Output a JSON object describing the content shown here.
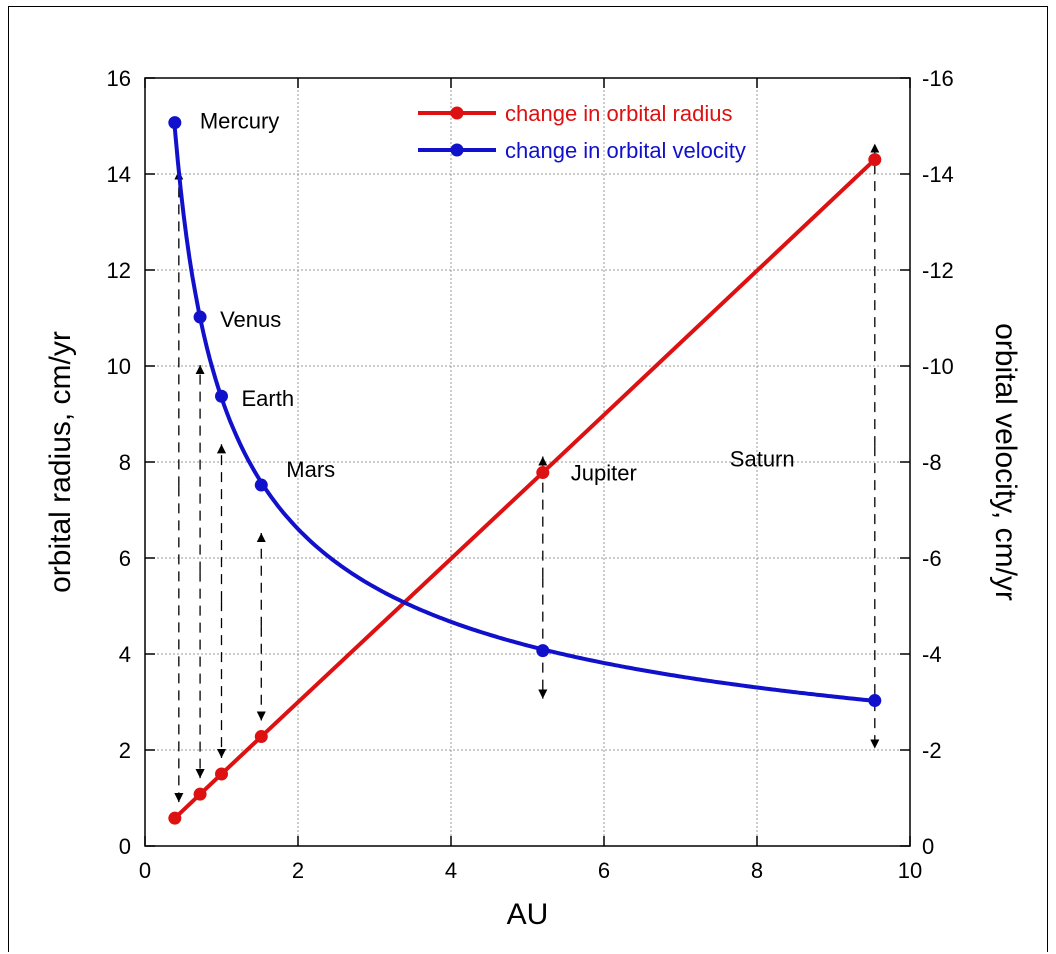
{
  "chart_data": {
    "type": "line",
    "xlabel": "AU",
    "ylabel_left": "orbital radius, cm/yr",
    "ylabel_right": "orbital velocity, cm/yr",
    "xlim": [
      0,
      10
    ],
    "ylim_left": [
      0,
      16
    ],
    "ylim_right": [
      0,
      -16
    ],
    "x_ticks": [
      "0",
      "2",
      "4",
      "6",
      "8",
      "10"
    ],
    "y_ticks_left": [
      "0",
      "2",
      "4",
      "6",
      "8",
      "10",
      "12",
      "14",
      "16"
    ],
    "y_ticks_right": [
      "0",
      "-2",
      "-4",
      "-6",
      "-8",
      "-10",
      "-12",
      "-14",
      "-16"
    ],
    "grid": true,
    "legend_position": "top-center",
    "planets": [
      {
        "name": "Mercury",
        "x": 0.39
      },
      {
        "name": "Venus",
        "x": 0.72
      },
      {
        "name": "Earth",
        "x": 1.0
      },
      {
        "name": "Mars",
        "x": 1.52
      },
      {
        "name": "Jupiter",
        "x": 5.2
      },
      {
        "name": "Saturn",
        "x": 9.54
      }
    ],
    "series": [
      {
        "name": "change in orbital radius",
        "color": "#dd1111",
        "axis": "left",
        "x": [
          0.39,
          0.72,
          1.0,
          1.52,
          5.2,
          9.54
        ],
        "values": [
          0.58,
          1.08,
          1.5,
          2.28,
          7.78,
          14.3
        ]
      },
      {
        "name": "change in orbital velocity",
        "color": "#1111cc",
        "axis": "right",
        "x": [
          0.39,
          0.72,
          1.0,
          1.52,
          5.2,
          9.54
        ],
        "values": [
          -15.07,
          -11.02,
          -9.37,
          -7.52,
          -4.07,
          -3.03
        ]
      }
    ]
  }
}
